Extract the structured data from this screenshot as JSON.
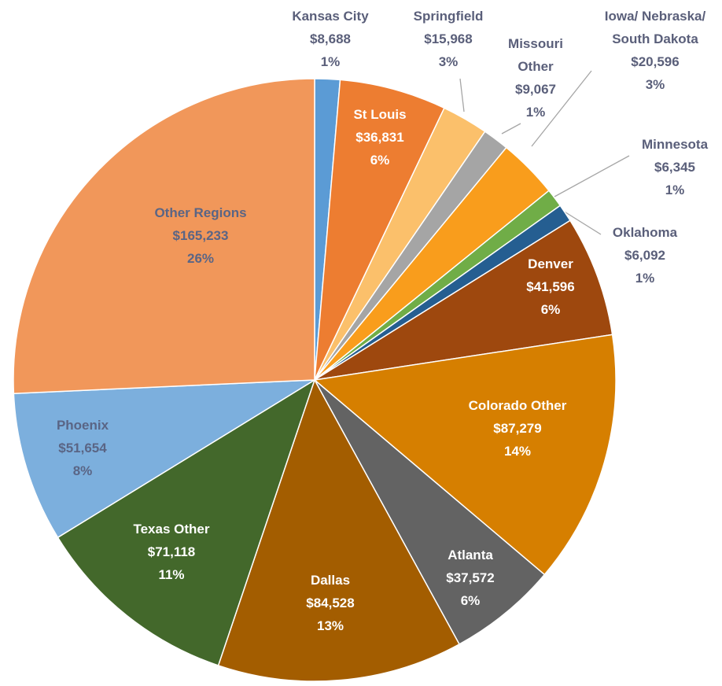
{
  "chart_data": {
    "type": "pie",
    "categories": [
      "Kansas City",
      "St Louis",
      "Springfield",
      "Missouri Other",
      "Iowa/ Nebraska/ South Dakota",
      "Minnesota",
      "Oklahoma",
      "Denver",
      "Colorado Other",
      "Atlanta",
      "Dallas",
      "Texas Other",
      "Phoenix",
      "Other Regions"
    ],
    "values": [
      8688,
      36831,
      15968,
      9067,
      20596,
      6345,
      6092,
      41596,
      87279,
      37572,
      84528,
      71118,
      51654,
      165233
    ],
    "value_labels": [
      "$8,688",
      "$36,831",
      "$15,968",
      "$9,067",
      "$20,596",
      "$6,345",
      "$6,092",
      "$41,596",
      "$87,279",
      "$37,572",
      "$84,528",
      "$71,118",
      "$51,654",
      "$165,233"
    ],
    "percent_labels": [
      "1%",
      "6%",
      "3%",
      "1%",
      "3%",
      "1%",
      "1%",
      "6%",
      "14%",
      "6%",
      "13%",
      "11%",
      "8%",
      "26%"
    ],
    "colors": [
      "#5b9bd5",
      "#ed7d31",
      "#fbc06b",
      "#a5a5a5",
      "#f99d1c",
      "#70ad47",
      "#255e91",
      "#9e480e",
      "#d67f00",
      "#636363",
      "#a35d00",
      "#43682b",
      "#7cafdd",
      "#f1975a"
    ]
  }
}
